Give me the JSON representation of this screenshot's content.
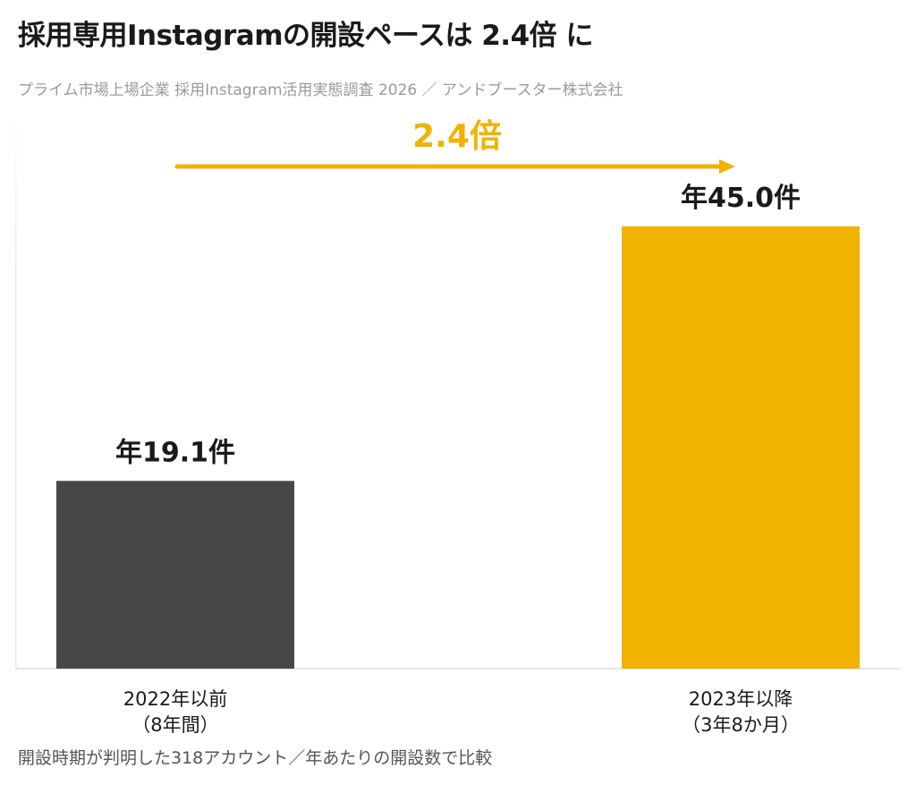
{
  "title": "採用専用Instagramの開設ペースは 2.4倍 に",
  "subtitle": "プライム市場上場企業 採用Instagram活用実態調査 2026 ／ アンドブースター株式会社",
  "footnote": "開設時期が判明した318アカウント／年あたりの開設数で比較",
  "colors": {
    "bar_before": "#474747",
    "bar_after": "#f2b200",
    "accent": "#f2b200",
    "axis": "#e6e6e6"
  },
  "chart_data": {
    "type": "bar",
    "categories": [
      {
        "line1": "2022年以前",
        "line2": "（8年間）"
      },
      {
        "line1": "2023年以降",
        "line2": "（3年8か月）"
      }
    ],
    "values": [
      19.1,
      45.0
    ],
    "value_labels": [
      "年19.1件",
      "年45.0件"
    ],
    "ylim": [
      0,
      52
    ],
    "grid": false,
    "annotation": {
      "label": "2.4倍",
      "arrow": "right"
    }
  }
}
